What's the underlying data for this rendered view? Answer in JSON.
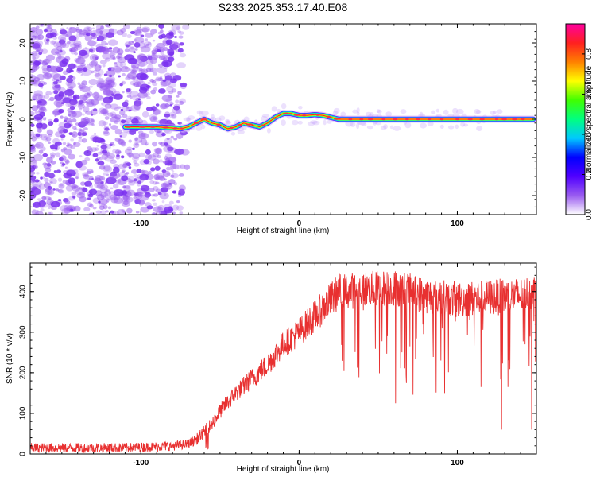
{
  "title": "S233.2025.353.17.40.E08",
  "colors": {
    "snr_line": "#e83030",
    "frame": "#000000",
    "noise_speckle": "#9a5cf0",
    "track_core": "#ff2020"
  },
  "colorbar": {
    "label": "Normalized spectral amplitude",
    "range": [
      0,
      0.95
    ],
    "ticks": [
      "0.0",
      "0.2",
      "0.4",
      "0.6",
      "0.8"
    ],
    "tick_values": [
      0,
      0.2,
      0.4,
      0.6,
      0.8
    ],
    "colormap": [
      "#ffffff",
      "#9a5cf0",
      "#5000ff",
      "#0000ff",
      "#00c8ff",
      "#00ff80",
      "#40ff00",
      "#ffff00",
      "#ff8000",
      "#ff2020",
      "#ff00a0"
    ]
  },
  "chart_data": [
    {
      "type": "heatmap",
      "name": "spectrogram",
      "xlabel": "Height of straight line (km)",
      "ylabel": "Frequency (Hz)",
      "xlim": [
        -170,
        150
      ],
      "ylim": [
        -25,
        25
      ],
      "xticks": [
        -100,
        0,
        100
      ],
      "xtick_labels": [
        "-100",
        "0",
        "100"
      ],
      "yticks": [
        -20,
        -10,
        0,
        10,
        20
      ],
      "ytick_labels": [
        "-20",
        "-10",
        "0",
        "10",
        "20"
      ],
      "track": {
        "x": [
          -110,
          -100,
          -90,
          -80,
          -75,
          -70,
          -65,
          -60,
          -55,
          -50,
          -45,
          -40,
          -35,
          -30,
          -25,
          -20,
          -15,
          -10,
          -5,
          0,
          5,
          10,
          15,
          20,
          25,
          30,
          40,
          60,
          80,
          100,
          120,
          140,
          148
        ],
        "y": [
          -2,
          -2,
          -2,
          -2.3,
          -2.5,
          -2,
          -1,
          0,
          -1,
          -1.5,
          -2.5,
          -2,
          -1,
          -1.5,
          -2,
          -1,
          0.5,
          1.5,
          1.5,
          1,
          1,
          1.2,
          1,
          0.5,
          0,
          0,
          0,
          0,
          0,
          0,
          0,
          0,
          0
        ]
      },
      "noise_region_x": [
        -170,
        -70
      ]
    },
    {
      "type": "line",
      "name": "snr",
      "xlabel": "Height of straight line (km)",
      "ylabel": "SNR (10 * v/v)",
      "xlim": [
        -170,
        150
      ],
      "ylim": [
        0,
        470
      ],
      "xticks": [
        -100,
        0,
        100
      ],
      "xtick_labels": [
        "-100",
        "0",
        "100"
      ],
      "yticks": [
        0,
        100,
        200,
        300,
        400
      ],
      "ytick_labels": [
        "0",
        "100",
        "200",
        "300",
        "400"
      ],
      "series": [
        {
          "values_profile": {
            "x": [
              -170,
              -140,
              -110,
              -90,
              -80,
              -70,
              -65,
              -60,
              -55,
              -50,
              -40,
              -30,
              -20,
              -10,
              0,
              10,
              20,
              25,
              30,
              40,
              60,
              80,
              100,
              120,
              140,
              150
            ],
            "y": [
              15,
              15,
              15,
              18,
              20,
              25,
              35,
              55,
              75,
              105,
              150,
              185,
              220,
              270,
              300,
              340,
              380,
              400,
              400,
              405,
              410,
              390,
              380,
              385,
              390,
              400
            ]
          },
          "noise_amplitude": 12,
          "dips": [
            {
              "x": 61,
              "y": 125
            },
            {
              "x": 92,
              "y": 150
            },
            {
              "x": 115,
              "y": 165
            },
            {
              "x": 128,
              "y": 60
            },
            {
              "x": 132,
              "y": 165
            },
            {
              "x": 147,
              "y": 60
            }
          ]
        }
      ]
    }
  ]
}
